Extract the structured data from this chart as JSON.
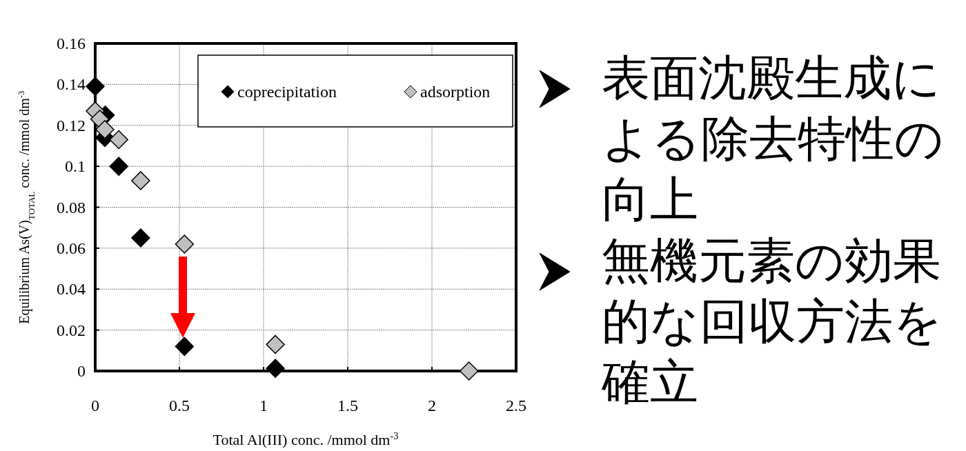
{
  "chart_data": {
    "type": "scatter",
    "xlabel": "Total Al(III) conc. /mmol dm$^{-3}$",
    "ylabel": "Equilibrium As(V)$_{TOTAL}$ conc. /mmol dm$^{-3}$",
    "xlim": [
      0,
      2.5
    ],
    "xticks": [
      0,
      0.5,
      1,
      1.5,
      2,
      2.5
    ],
    "ylim": [
      0,
      0.16
    ],
    "yticks": [
      0,
      0.02,
      0.04,
      0.06,
      0.08,
      0.1,
      0.12,
      0.14,
      0.16
    ],
    "grid": true,
    "legend": "top right",
    "marker": "diamond",
    "series": [
      {
        "name": "coprecipitation",
        "color": "#000000",
        "x": [
          0,
          0.06,
          0.057,
          0.14,
          0.27,
          0.53,
          1.07
        ],
        "values": [
          0.139,
          0.125,
          0.114,
          0.1,
          0.065,
          0.012,
          0.0013
        ]
      },
      {
        "name": "adsorption",
        "color": "#c0c0c0",
        "x": [
          0,
          0.027,
          0.057,
          0.14,
          0.27,
          0.53,
          1.07,
          2.22
        ],
        "values": [
          0.127,
          0.123,
          0.118,
          0.113,
          0.093,
          0.062,
          0.013,
          0
        ]
      }
    ],
    "annotations": [
      "表面沈殿生成による除去特性の向上",
      "無機元素の効果的な回収方法を確立"
    ]
  }
}
